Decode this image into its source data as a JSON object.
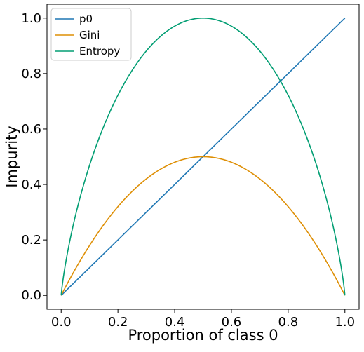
{
  "chart_data": {
    "type": "line",
    "title": "",
    "xlabel": "Proportion of class 0",
    "ylabel": "Impurity",
    "xlim": [
      -0.05,
      1.05
    ],
    "ylim": [
      -0.05,
      1.05
    ],
    "x_ticks": [
      "0.0",
      "0.2",
      "0.4",
      "0.6",
      "0.8",
      "1.0"
    ],
    "y_ticks": [
      "0.0",
      "0.2",
      "0.4",
      "0.6",
      "0.8",
      "1.0"
    ],
    "grid": false,
    "legend_position": "top-left",
    "x": [
      0.0,
      0.05,
      0.1,
      0.15,
      0.2,
      0.25,
      0.3,
      0.35,
      0.4,
      0.45,
      0.5,
      0.55,
      0.6,
      0.65,
      0.7,
      0.75,
      0.8,
      0.85,
      0.9,
      0.95,
      1.0
    ],
    "series": [
      {
        "name": "p0",
        "color": "#1f77b4",
        "values": [
          0.0,
          0.05,
          0.1,
          0.15,
          0.2,
          0.25,
          0.3,
          0.35,
          0.4,
          0.45,
          0.5,
          0.55,
          0.6,
          0.65,
          0.7,
          0.75,
          0.8,
          0.85,
          0.9,
          0.95,
          1.0
        ]
      },
      {
        "name": "Gini",
        "color": "#de8f05",
        "values": [
          0.0,
          0.095,
          0.18,
          0.255,
          0.32,
          0.375,
          0.42,
          0.455,
          0.48,
          0.495,
          0.5,
          0.495,
          0.48,
          0.455,
          0.42,
          0.375,
          0.32,
          0.255,
          0.18,
          0.095,
          0.0
        ]
      },
      {
        "name": "Entropy",
        "color": "#029e73",
        "values": [
          0.0,
          0.286,
          0.469,
          0.61,
          0.722,
          0.811,
          0.881,
          0.934,
          0.971,
          0.993,
          1.0,
          0.993,
          0.971,
          0.934,
          0.881,
          0.811,
          0.722,
          0.61,
          0.469,
          0.286,
          0.0
        ]
      }
    ]
  }
}
